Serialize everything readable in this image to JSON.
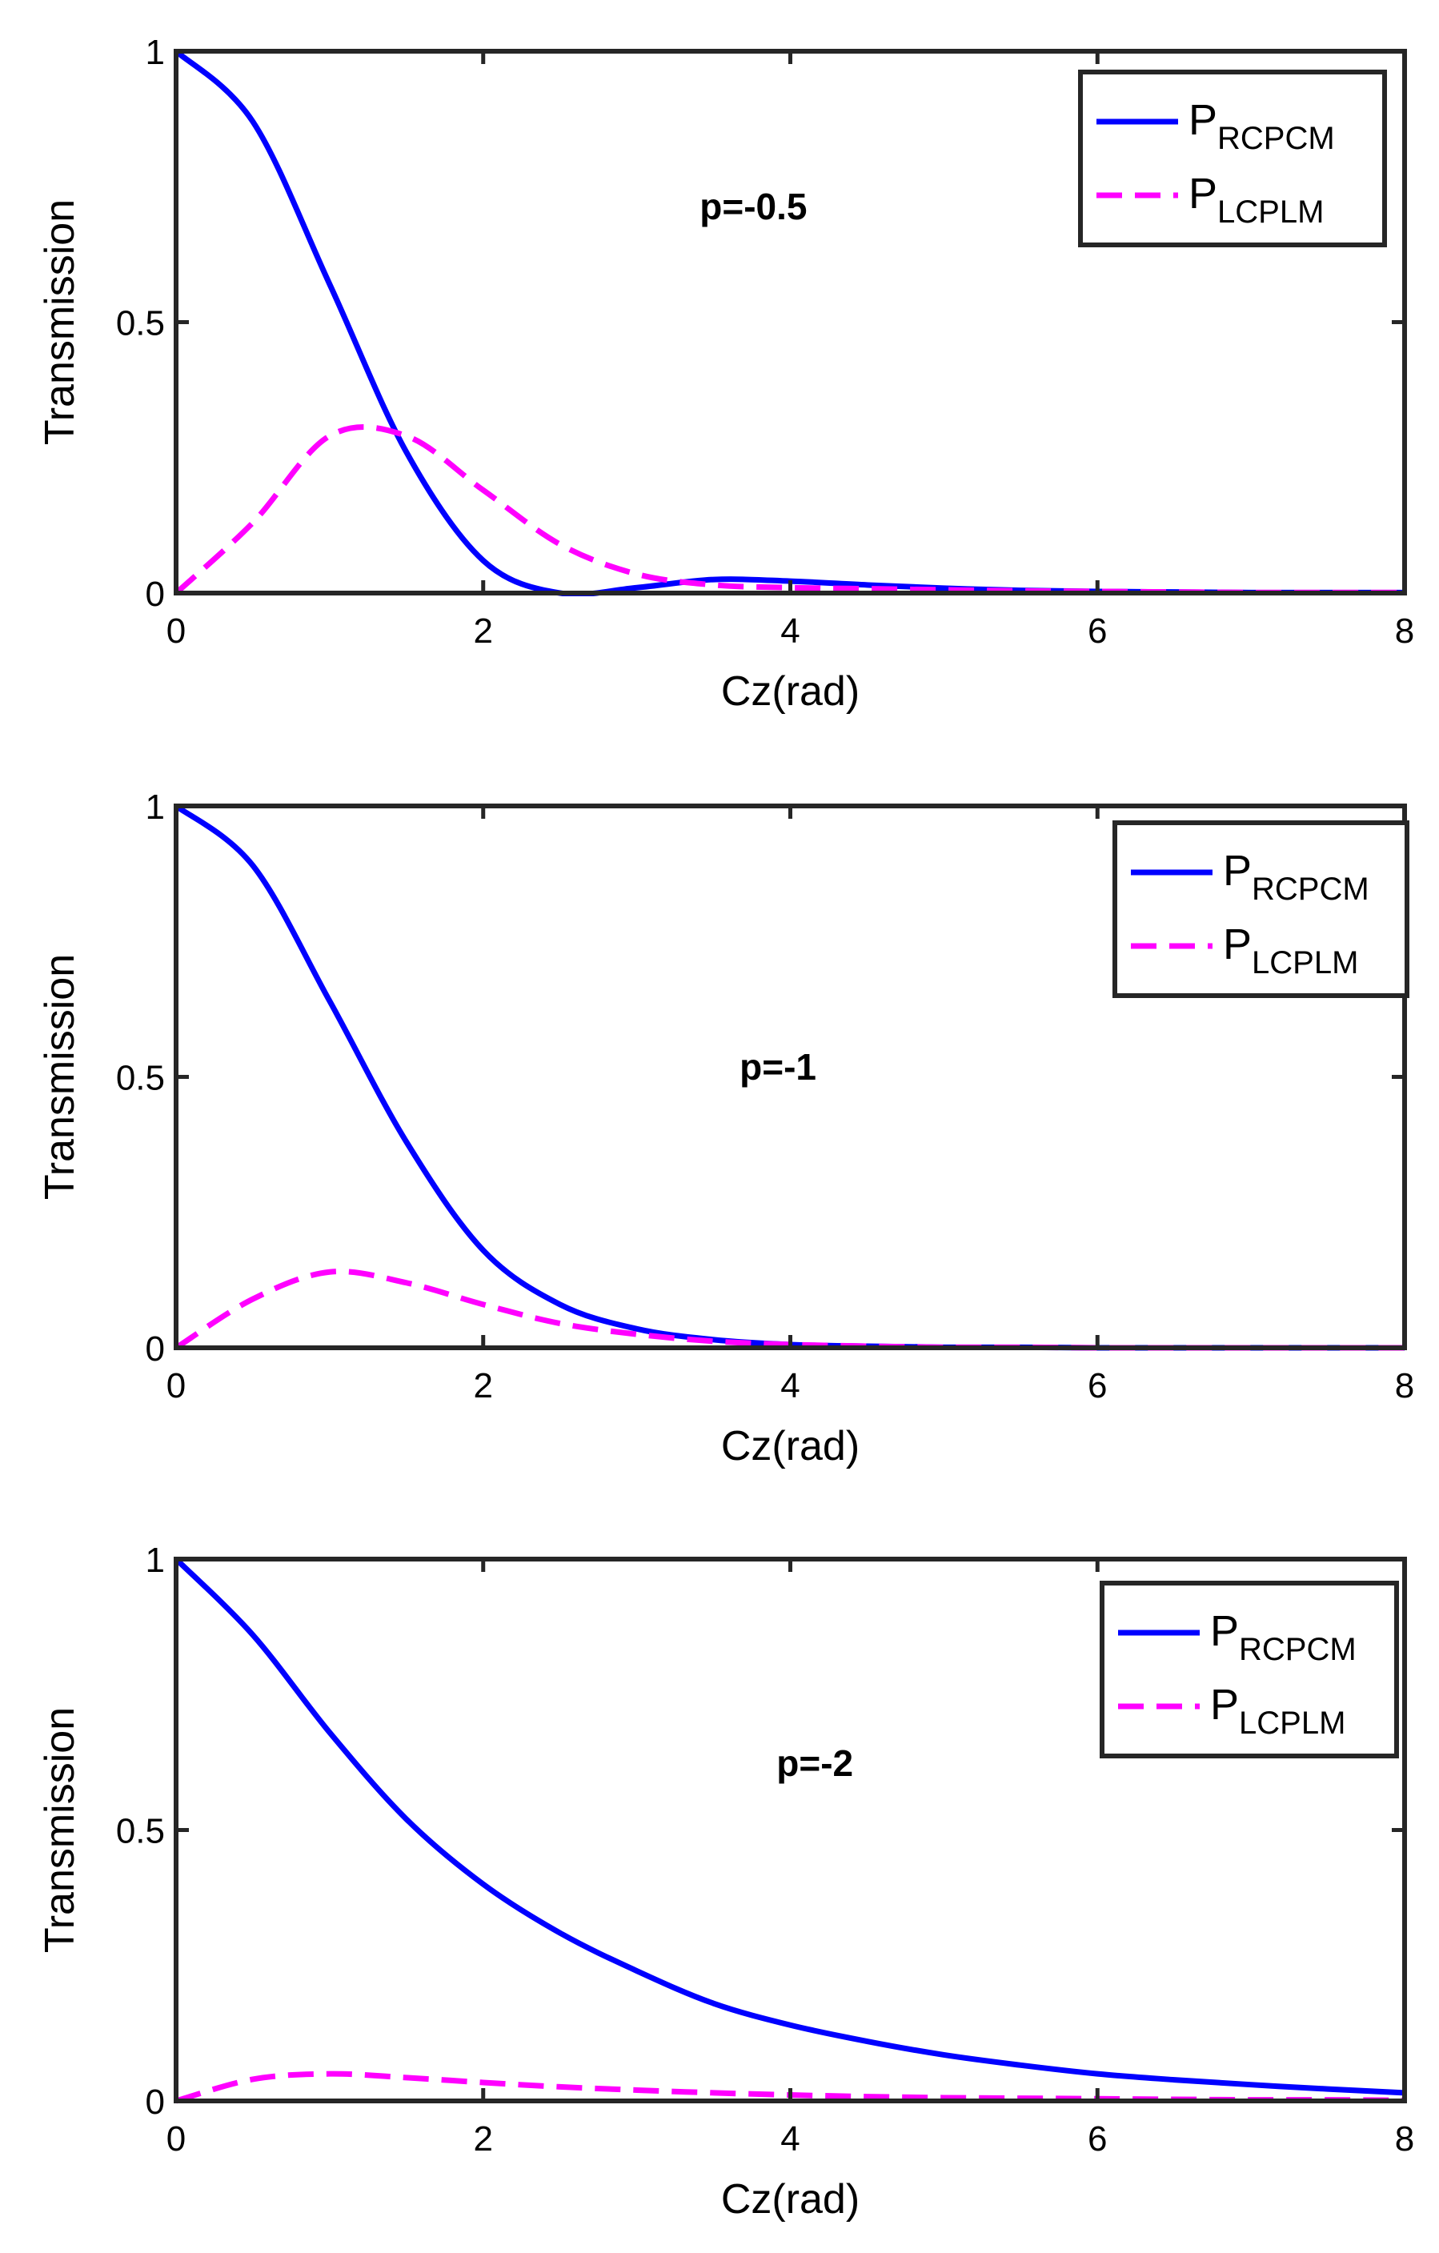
{
  "chart_data": [
    {
      "type": "line",
      "title": "",
      "annotation": "p=-0.5",
      "xlabel": "Cz(rad)",
      "ylabel": "Transmission",
      "xlim": [
        0,
        8
      ],
      "ylim": [
        0,
        1
      ],
      "xticks": [
        "0",
        "2",
        "4",
        "6",
        "8"
      ],
      "yticks": [
        "0",
        "0.5",
        "1"
      ],
      "grid": false,
      "legend_position": "top-right",
      "x": [
        0,
        0.5,
        1,
        1.5,
        2,
        2.5,
        3,
        3.5,
        4,
        4.5,
        5,
        5.5,
        6,
        6.5,
        7,
        7.5,
        8
      ],
      "series": [
        {
          "name": "P",
          "subscript": "RCPCM",
          "color": "#0000ff",
          "dash": "solid",
          "values": [
            1,
            0.87,
            0.57,
            0.26,
            0.06,
            0.0,
            0.01,
            0.025,
            0.022,
            0.015,
            0.009,
            0.005,
            0.003,
            0.002,
            0.001,
            0.001,
            0.001
          ]
        },
        {
          "name": "P",
          "subscript": "LCPLM",
          "color": "#ff00ff",
          "dash": "dashed",
          "values": [
            0,
            0.13,
            0.29,
            0.29,
            0.19,
            0.09,
            0.035,
            0.015,
            0.01,
            0.008,
            0.006,
            0.004,
            0.003,
            0.002,
            0.001,
            0.001,
            0.001
          ]
        }
      ]
    },
    {
      "type": "line",
      "title": "",
      "annotation": "p=-1",
      "xlabel": "Cz(rad)",
      "ylabel": "Transmission",
      "xlim": [
        0,
        8
      ],
      "ylim": [
        0,
        1
      ],
      "xticks": [
        "0",
        "2",
        "4",
        "6",
        "8"
      ],
      "yticks": [
        "0",
        "0.5",
        "1"
      ],
      "grid": false,
      "legend_position": "top-right",
      "x": [
        0,
        0.5,
        1,
        1.5,
        2,
        2.5,
        3,
        3.5,
        4,
        4.5,
        5,
        5.5,
        6,
        6.5,
        7,
        7.5,
        8
      ],
      "series": [
        {
          "name": "P",
          "subscript": "RCPCM",
          "color": "#0000ff",
          "dash": "solid",
          "values": [
            1,
            0.89,
            0.64,
            0.38,
            0.18,
            0.08,
            0.035,
            0.015,
            0.006,
            0.003,
            0.001,
            0.001,
            0,
            0,
            0,
            0,
            0
          ]
        },
        {
          "name": "P",
          "subscript": "LCPLM",
          "color": "#ff00ff",
          "dash": "dashed",
          "values": [
            0,
            0.09,
            0.14,
            0.12,
            0.08,
            0.045,
            0.025,
            0.012,
            0.006,
            0.003,
            0.001,
            0.001,
            0,
            0,
            0,
            0,
            0
          ]
        }
      ]
    },
    {
      "type": "line",
      "title": "",
      "annotation": "p=-2",
      "xlabel": "Cz(rad)",
      "ylabel": "Transmission",
      "xlim": [
        0,
        8
      ],
      "ylim": [
        0,
        1
      ],
      "xticks": [
        "0",
        "2",
        "4",
        "6",
        "8"
      ],
      "yticks": [
        "0",
        "0.5",
        "1"
      ],
      "grid": false,
      "legend_position": "top-right",
      "x": [
        0,
        0.5,
        1,
        1.5,
        2,
        2.5,
        3,
        3.5,
        4,
        4.5,
        5,
        5.5,
        6,
        6.5,
        7,
        7.5,
        8
      ],
      "series": [
        {
          "name": "P",
          "subscript": "RCPCM",
          "color": "#0000ff",
          "dash": "solid",
          "values": [
            1,
            0.86,
            0.68,
            0.52,
            0.4,
            0.31,
            0.24,
            0.18,
            0.14,
            0.11,
            0.085,
            0.066,
            0.05,
            0.039,
            0.03,
            0.022,
            0.015
          ]
        },
        {
          "name": "P",
          "subscript": "LCPLM",
          "color": "#ff00ff",
          "dash": "dashed",
          "values": [
            0,
            0.04,
            0.05,
            0.043,
            0.034,
            0.026,
            0.02,
            0.015,
            0.011,
            0.008,
            0.006,
            0.005,
            0.004,
            0.003,
            0.002,
            0.002,
            0.001
          ]
        }
      ]
    }
  ]
}
